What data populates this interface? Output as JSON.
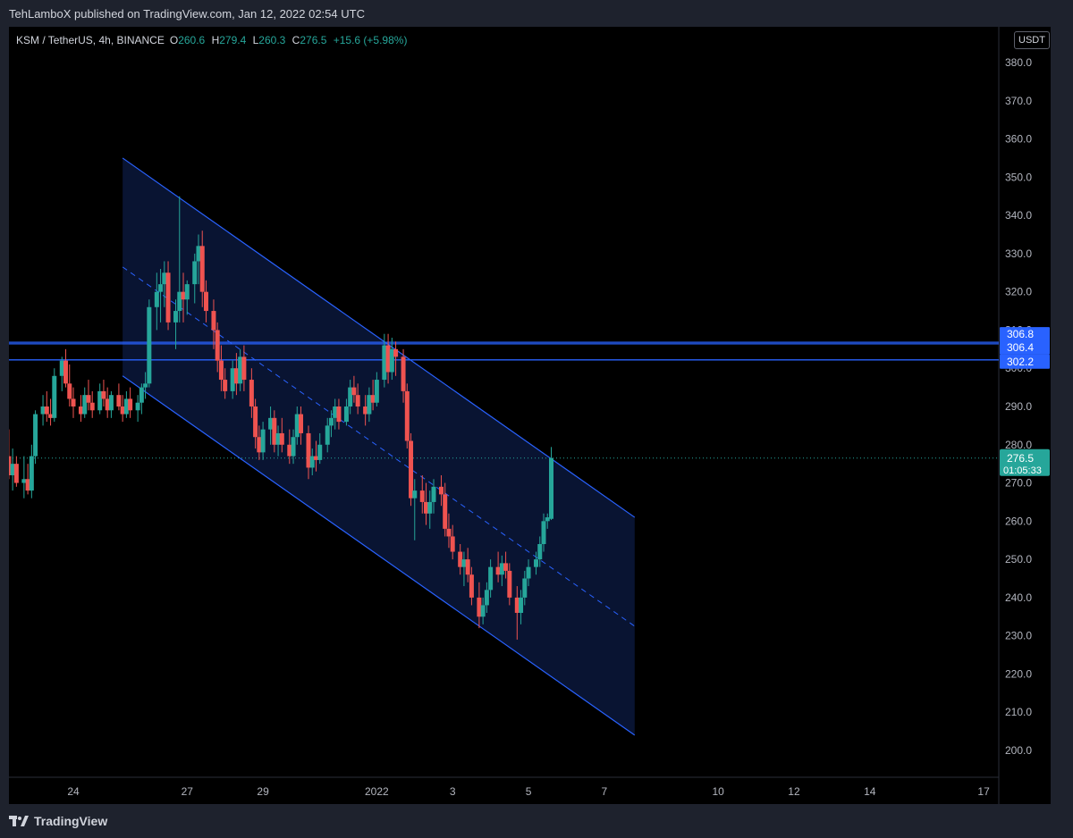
{
  "header": {
    "publisher": "TehLamboX published on TradingView.com, Jan 12, 2022 02:54 UTC"
  },
  "symbol": {
    "pair": "KSM / TetherUS, 4h, BINANCE",
    "open_label": "O",
    "open": "260.6",
    "high_label": "H",
    "high": "279.4",
    "low_label": "L",
    "low": "260.3",
    "close_label": "C",
    "close": "276.5",
    "change": "+15.6 (+5.98%)"
  },
  "currency_button": "USDT",
  "footer": {
    "brand": "TradingView"
  },
  "colors": {
    "up": "#26a69a",
    "down": "#ef5350",
    "channel_line": "#2962ff",
    "channel_fill": "#0a1535",
    "background": "#000000",
    "panel": "#1e222d"
  },
  "chart_data": {
    "type": "candlestick",
    "ylim": [
      195,
      385
    ],
    "y_ticks": [
      "200.0",
      "210.0",
      "220.0",
      "230.0",
      "240.0",
      "250.0",
      "260.0",
      "270.0",
      "280.0",
      "290.0",
      "300.0",
      "310.0",
      "320.0",
      "330.0",
      "340.0",
      "350.0",
      "360.0",
      "370.0",
      "380.0"
    ],
    "x_ticks": [
      {
        "label": "24",
        "day": 24
      },
      {
        "label": "27",
        "day": 27
      },
      {
        "label": "29",
        "day": 29
      },
      {
        "label": "2022",
        "day": 32
      },
      {
        "label": "3",
        "day": 34
      },
      {
        "label": "5",
        "day": 36
      },
      {
        "label": "7",
        "day": 38
      },
      {
        "label": "10",
        "day": 41
      },
      {
        "label": "12",
        "day": 43
      },
      {
        "label": "14",
        "day": 45
      },
      {
        "label": "17",
        "day": 48
      }
    ],
    "candles": [
      [
        22.2,
        276,
        279,
        273,
        277
      ],
      [
        22.3,
        277,
        284,
        271,
        272
      ],
      [
        22.4,
        272,
        279,
        268,
        275
      ],
      [
        22.5,
        275,
        277,
        269,
        270
      ],
      [
        22.7,
        270,
        277,
        266,
        271
      ],
      [
        22.8,
        271,
        275,
        267,
        268
      ],
      [
        22.9,
        268,
        280,
        266,
        277
      ],
      [
        23.0,
        277,
        289,
        275,
        288
      ],
      [
        23.2,
        288,
        293,
        285,
        290
      ],
      [
        23.3,
        290,
        294,
        286,
        288
      ],
      [
        23.4,
        288,
        292,
        285,
        287
      ],
      [
        23.5,
        287,
        300,
        286,
        298
      ],
      [
        23.7,
        298,
        303,
        294,
        302
      ],
      [
        23.8,
        302,
        305,
        295,
        296
      ],
      [
        23.9,
        296,
        301,
        290,
        292
      ],
      [
        24.0,
        292,
        295,
        287,
        290
      ],
      [
        24.2,
        290,
        293,
        286,
        288
      ],
      [
        24.3,
        288,
        295,
        287,
        293
      ],
      [
        24.4,
        293,
        297,
        289,
        291
      ],
      [
        24.5,
        291,
        294,
        287,
        289
      ],
      [
        24.7,
        289,
        296,
        288,
        294
      ],
      [
        24.8,
        294,
        297,
        290,
        292
      ],
      [
        24.9,
        292,
        295,
        287,
        289
      ],
      [
        25.0,
        289,
        294,
        287,
        293
      ],
      [
        25.2,
        293,
        296,
        289,
        290
      ],
      [
        25.3,
        290,
        293,
        286,
        288
      ],
      [
        25.4,
        288,
        294,
        287,
        292
      ],
      [
        25.5,
        292,
        295,
        287,
        289
      ],
      [
        25.7,
        289,
        293,
        286,
        291
      ],
      [
        25.8,
        291,
        296,
        288,
        295
      ],
      [
        25.9,
        295,
        299,
        292,
        296
      ],
      [
        26.0,
        296,
        318,
        295,
        316
      ],
      [
        26.2,
        316,
        325,
        310,
        320
      ],
      [
        26.3,
        320,
        326,
        312,
        322
      ],
      [
        26.4,
        322,
        328,
        316,
        325
      ],
      [
        26.5,
        325,
        328,
        310,
        312
      ],
      [
        26.7,
        312,
        318,
        305,
        315
      ],
      [
        26.8,
        315,
        345,
        312,
        320
      ],
      [
        26.9,
        320,
        325,
        312,
        318
      ],
      [
        27.0,
        318,
        323,
        314,
        322
      ],
      [
        27.2,
        322,
        330,
        317,
        328
      ],
      [
        27.3,
        328,
        335,
        322,
        332
      ],
      [
        27.4,
        332,
        336,
        316,
        320
      ],
      [
        27.5,
        320,
        323,
        312,
        315
      ],
      [
        27.7,
        315,
        318,
        305,
        310
      ],
      [
        27.8,
        310,
        312,
        299,
        302
      ],
      [
        27.9,
        302,
        306,
        294,
        297
      ],
      [
        28.0,
        297,
        300,
        292,
        294
      ],
      [
        28.2,
        294,
        302,
        292,
        300
      ],
      [
        28.3,
        300,
        304,
        293,
        296
      ],
      [
        28.4,
        296,
        305,
        294,
        303
      ],
      [
        28.5,
        303,
        306,
        294,
        297
      ],
      [
        28.7,
        297,
        300,
        287,
        290
      ],
      [
        28.8,
        290,
        292,
        279,
        282
      ],
      [
        28.9,
        282,
        285,
        276,
        278
      ],
      [
        29.0,
        278,
        286,
        276,
        284
      ],
      [
        29.2,
        284,
        290,
        280,
        287
      ],
      [
        29.3,
        287,
        289,
        278,
        280
      ],
      [
        29.4,
        280,
        285,
        277,
        283
      ],
      [
        29.5,
        283,
        287,
        278,
        280
      ],
      [
        29.7,
        280,
        284,
        275,
        277
      ],
      [
        29.8,
        277,
        284,
        275,
        282
      ],
      [
        29.9,
        282,
        290,
        280,
        288
      ],
      [
        30.0,
        288,
        290,
        280,
        283
      ],
      [
        30.2,
        283,
        285,
        271,
        274
      ],
      [
        30.3,
        274,
        279,
        272,
        277
      ],
      [
        30.4,
        277,
        281,
        273,
        276
      ],
      [
        30.5,
        276,
        283,
        275,
        280
      ],
      [
        30.7,
        280,
        287,
        278,
        285
      ],
      [
        30.8,
        285,
        289,
        282,
        287
      ],
      [
        30.9,
        287,
        292,
        284,
        290
      ],
      [
        31.0,
        290,
        292,
        284,
        286
      ],
      [
        31.2,
        286,
        292,
        285,
        290
      ],
      [
        31.3,
        290,
        297,
        288,
        295
      ],
      [
        31.4,
        295,
        298,
        291,
        293
      ],
      [
        31.5,
        293,
        296,
        288,
        290
      ],
      [
        31.7,
        290,
        293,
        285,
        288
      ],
      [
        31.8,
        288,
        295,
        286,
        293
      ],
      [
        31.9,
        293,
        297,
        289,
        291
      ],
      [
        32.0,
        291,
        299,
        290,
        297
      ],
      [
        32.2,
        297,
        309,
        295,
        306
      ],
      [
        32.3,
        306,
        309,
        296,
        299
      ],
      [
        32.4,
        299,
        308,
        297,
        305
      ],
      [
        32.5,
        305,
        307,
        298,
        303
      ],
      [
        32.7,
        303,
        305,
        291,
        294
      ],
      [
        32.8,
        294,
        296,
        279,
        281
      ],
      [
        32.9,
        281,
        283,
        264,
        266
      ],
      [
        33.0,
        266,
        271,
        255,
        268
      ],
      [
        33.2,
        268,
        272,
        262,
        265
      ],
      [
        33.3,
        265,
        270,
        259,
        262
      ],
      [
        33.4,
        262,
        268,
        258,
        265
      ],
      [
        33.5,
        265,
        271,
        262,
        269
      ],
      [
        33.7,
        269,
        272,
        264,
        267
      ],
      [
        33.8,
        267,
        270,
        256,
        258
      ],
      [
        33.9,
        258,
        262,
        253,
        256
      ],
      [
        34.0,
        256,
        259,
        250,
        252
      ],
      [
        34.2,
        252,
        254,
        246,
        248
      ],
      [
        34.3,
        248,
        252,
        243,
        250
      ],
      [
        34.4,
        250,
        253,
        244,
        246
      ],
      [
        34.5,
        246,
        248,
        238,
        240
      ],
      [
        34.7,
        240,
        244,
        232,
        235
      ],
      [
        34.8,
        235,
        240,
        233,
        238
      ],
      [
        34.9,
        238,
        244,
        236,
        242
      ],
      [
        35.0,
        242,
        250,
        240,
        248
      ],
      [
        35.2,
        248,
        252,
        244,
        246
      ],
      [
        35.3,
        246,
        251,
        243,
        249
      ],
      [
        35.4,
        249,
        252,
        245,
        247
      ],
      [
        35.5,
        247,
        249,
        238,
        240
      ],
      [
        35.7,
        240,
        243,
        229,
        236
      ],
      [
        35.8,
        236,
        242,
        233,
        240
      ],
      [
        35.9,
        240,
        247,
        238,
        245
      ],
      [
        36.0,
        245,
        250,
        243,
        248
      ],
      [
        36.2,
        248,
        252,
        246,
        250
      ],
      [
        36.3,
        250,
        256,
        248,
        254
      ],
      [
        36.4,
        254,
        262,
        252,
        260
      ],
      [
        36.5,
        260,
        262,
        258,
        261
      ],
      [
        36.6,
        260.6,
        279.4,
        260.3,
        276.5
      ]
    ],
    "channel": {
      "upper": [
        [
          25.3,
          355
        ],
        [
          38.8,
          261
        ]
      ],
      "lower": [
        [
          25.3,
          298
        ],
        [
          38.8,
          204
        ]
      ],
      "mid": [
        [
          25.3,
          326.5
        ],
        [
          38.8,
          232.5
        ]
      ]
    },
    "horizontal_levels": [
      {
        "price": 306.8,
        "label": "306.8"
      },
      {
        "price": 306.4,
        "label": "306.4"
      },
      {
        "price": 302.2,
        "label": "302.2"
      }
    ],
    "last_price": {
      "price": 276.5,
      "label": "276.5",
      "countdown": "01:05:33"
    }
  }
}
